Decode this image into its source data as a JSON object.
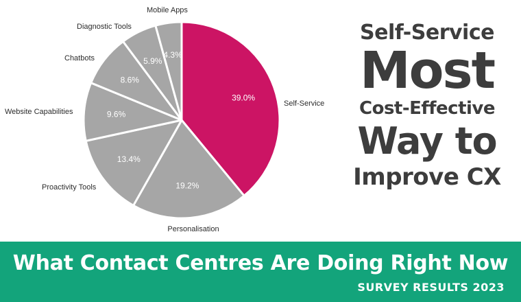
{
  "chart_data": {
    "type": "pie",
    "slices": [
      {
        "label": "Self-Service",
        "value": 39.0,
        "display": "39.0%"
      },
      {
        "label": "Personalisation",
        "value": 19.2,
        "display": "19.2%"
      },
      {
        "label": "Proactivity Tools",
        "value": 13.4,
        "display": "13.4%"
      },
      {
        "label": "Website Capabilities",
        "value": 9.6,
        "display": "9.6%"
      },
      {
        "label": "Chatbots",
        "value": 8.6,
        "display": "8.6%"
      },
      {
        "label": "Diagnostic Tools",
        "value": 5.9,
        "display": "5.9%"
      },
      {
        "label": "Mobile Apps",
        "value": 4.3,
        "display": "4.3%"
      }
    ],
    "start_angle_deg": 0,
    "direction": "clockwise",
    "colors": {
      "highlight": "#cc1464",
      "other": "#a6a6a6",
      "separator": "#ffffff"
    }
  },
  "headline": {
    "line1": "Self-Service",
    "line2": "Most",
    "line3": "Cost-Effective",
    "line4": "Way to",
    "line5": "Improve CX"
  },
  "banner": {
    "title": "What Contact Centres Are Doing Right Now",
    "subtitle": "SURVEY RESULTS 2023",
    "color": "#13a47b"
  }
}
